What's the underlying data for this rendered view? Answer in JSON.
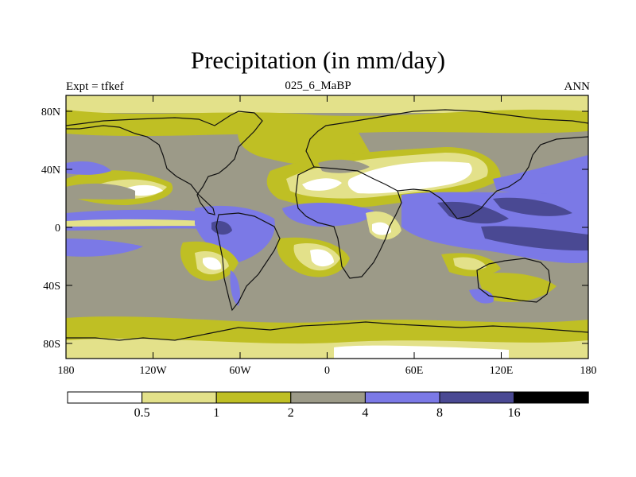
{
  "title": "Precipitation (in mm/day)",
  "experiment_label": "Expt = tfkef",
  "run_label": "025_6_MaBP",
  "season_label": "ANN",
  "axes": {
    "x_ticks": [
      "180",
      "120W",
      "60W",
      "0",
      "60E",
      "120E",
      "180"
    ],
    "y_ticks": [
      "80N",
      "40N",
      "0",
      "40S",
      "80S"
    ]
  },
  "colorbar": {
    "levels": [
      "0.5",
      "1",
      "2",
      "4",
      "8",
      "16"
    ],
    "colors": [
      "#ffffff",
      "#e3e18a",
      "#bfbf24",
      "#9c9a88",
      "#7b79e6",
      "#4a4993",
      "#000000"
    ]
  },
  "palette": {
    "lt_yellow": "#e3e18a",
    "olive": "#bfbf24",
    "grey": "#9c9a88",
    "blue": "#7b79e6",
    "dark_blue": "#4a4993",
    "white": "#ffffff",
    "coast": "#111111"
  }
}
